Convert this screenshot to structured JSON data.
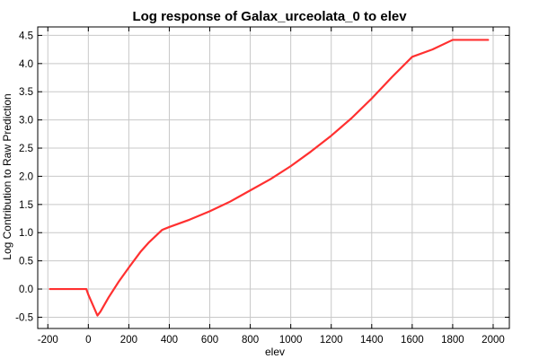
{
  "chart_data": {
    "type": "line",
    "title": "Log response of Galax_urceolata_0 to elev",
    "xlabel": "elev",
    "ylabel": "Log Contribution to Raw Prediction",
    "xlim": [
      -250,
      2080
    ],
    "ylim": [
      -0.7,
      4.65
    ],
    "xticks": [
      -200,
      0,
      200,
      400,
      600,
      800,
      1000,
      1200,
      1400,
      1600,
      1800,
      2000
    ],
    "yticks": [
      -0.5,
      0.0,
      0.5,
      1.0,
      1.5,
      2.0,
      2.5,
      3.0,
      3.5,
      4.0,
      4.5
    ],
    "xtick_labels": [
      "-200",
      "0",
      "200",
      "400",
      "600",
      "800",
      "1000",
      "1200",
      "1400",
      "1600",
      "1800",
      "2000"
    ],
    "ytick_labels": [
      "-0.5",
      "0.0",
      "0.5",
      "1.0",
      "1.5",
      "2.0",
      "2.5",
      "3.0",
      "3.5",
      "4.0",
      "4.5"
    ],
    "grid": true,
    "line_color": "#ff3030",
    "series": [
      {
        "x": [
          -190,
          -10,
          0,
          45,
          60,
          100,
          150,
          200,
          260,
          300,
          365,
          400,
          500,
          600,
          700,
          800,
          900,
          1000,
          1100,
          1200,
          1300,
          1400,
          1500,
          1600,
          1700,
          1800,
          1975
        ],
        "y": [
          0.0,
          0.0,
          -0.1,
          -0.47,
          -0.4,
          -0.15,
          0.13,
          0.38,
          0.67,
          0.83,
          1.05,
          1.1,
          1.23,
          1.38,
          1.55,
          1.75,
          1.95,
          2.18,
          2.44,
          2.72,
          3.03,
          3.38,
          3.76,
          4.12,
          4.25,
          4.42,
          4.42
        ]
      }
    ]
  }
}
